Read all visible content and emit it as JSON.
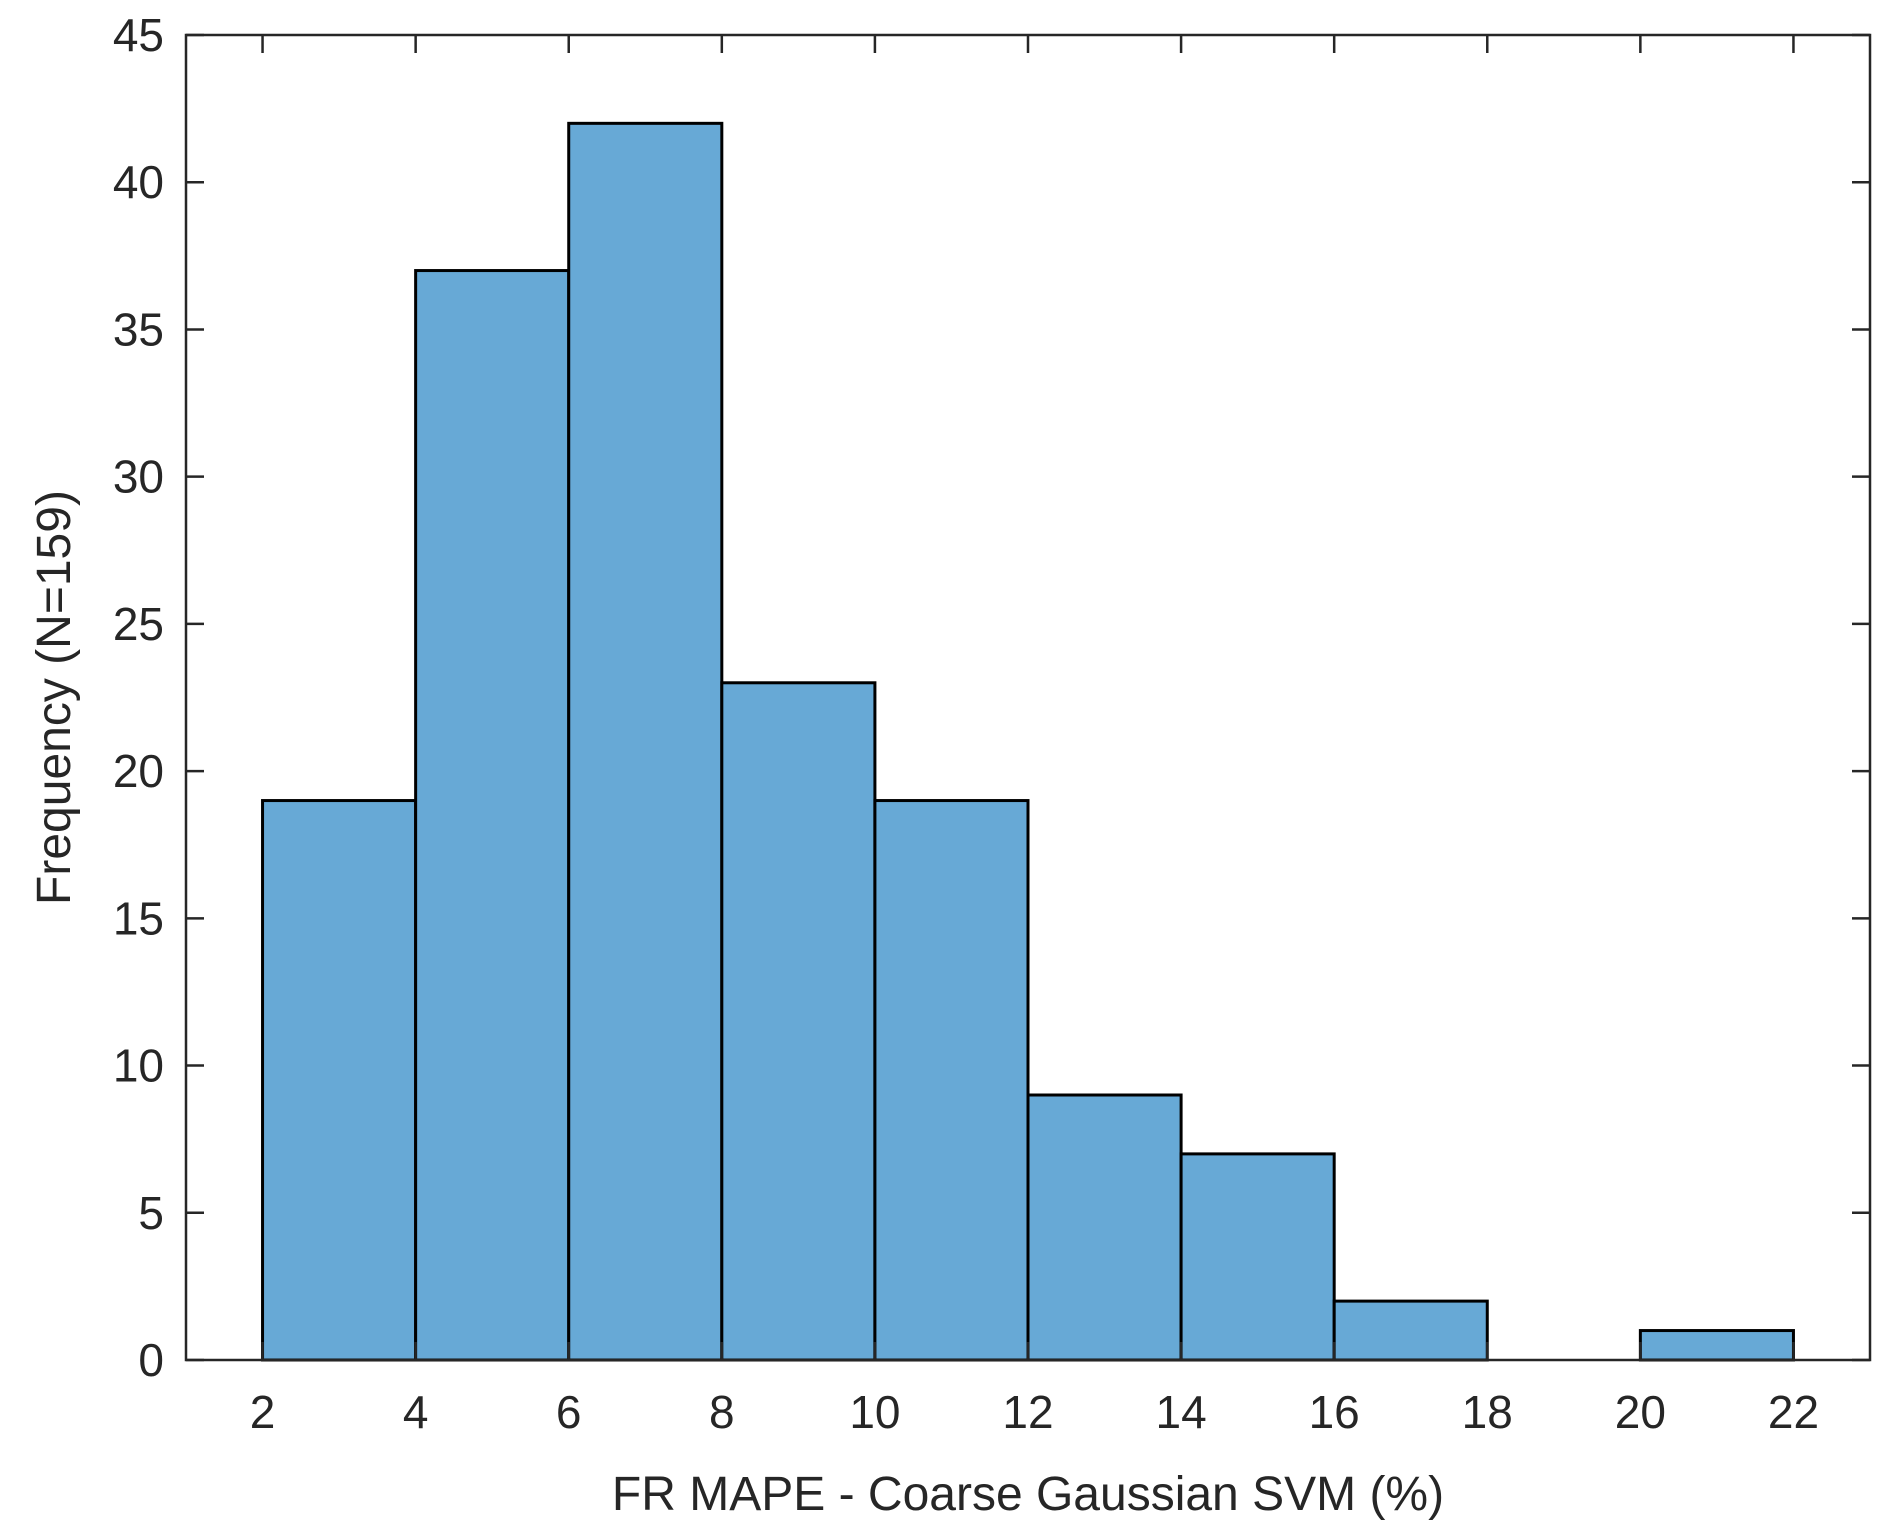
{
  "chart_data": {
    "type": "bar",
    "subtype": "histogram",
    "xlabel": "FR MAPE - Coarse Gaussian SVM (%)",
    "ylabel": "Frequency (N=159)",
    "xlim": [
      1,
      23
    ],
    "ylim": [
      0,
      45
    ],
    "xticks": [
      2,
      4,
      6,
      8,
      10,
      12,
      14,
      16,
      18,
      20,
      22
    ],
    "yticks": [
      0,
      5,
      10,
      15,
      20,
      25,
      30,
      35,
      40,
      45
    ],
    "bins": [
      {
        "start": 2,
        "end": 4,
        "value": 19
      },
      {
        "start": 4,
        "end": 6,
        "value": 37
      },
      {
        "start": 6,
        "end": 8,
        "value": 42
      },
      {
        "start": 8,
        "end": 10,
        "value": 23
      },
      {
        "start": 10,
        "end": 12,
        "value": 19
      },
      {
        "start": 12,
        "end": 14,
        "value": 9
      },
      {
        "start": 14,
        "end": 16,
        "value": 7
      },
      {
        "start": 16,
        "end": 18,
        "value": 2
      },
      {
        "start": 18,
        "end": 20,
        "value": 0
      },
      {
        "start": 20,
        "end": 22,
        "value": 1
      }
    ],
    "bar_color": "#67a9d6",
    "edge_color": "#000000",
    "axis_color": "#262626",
    "grid": false,
    "box": true
  }
}
